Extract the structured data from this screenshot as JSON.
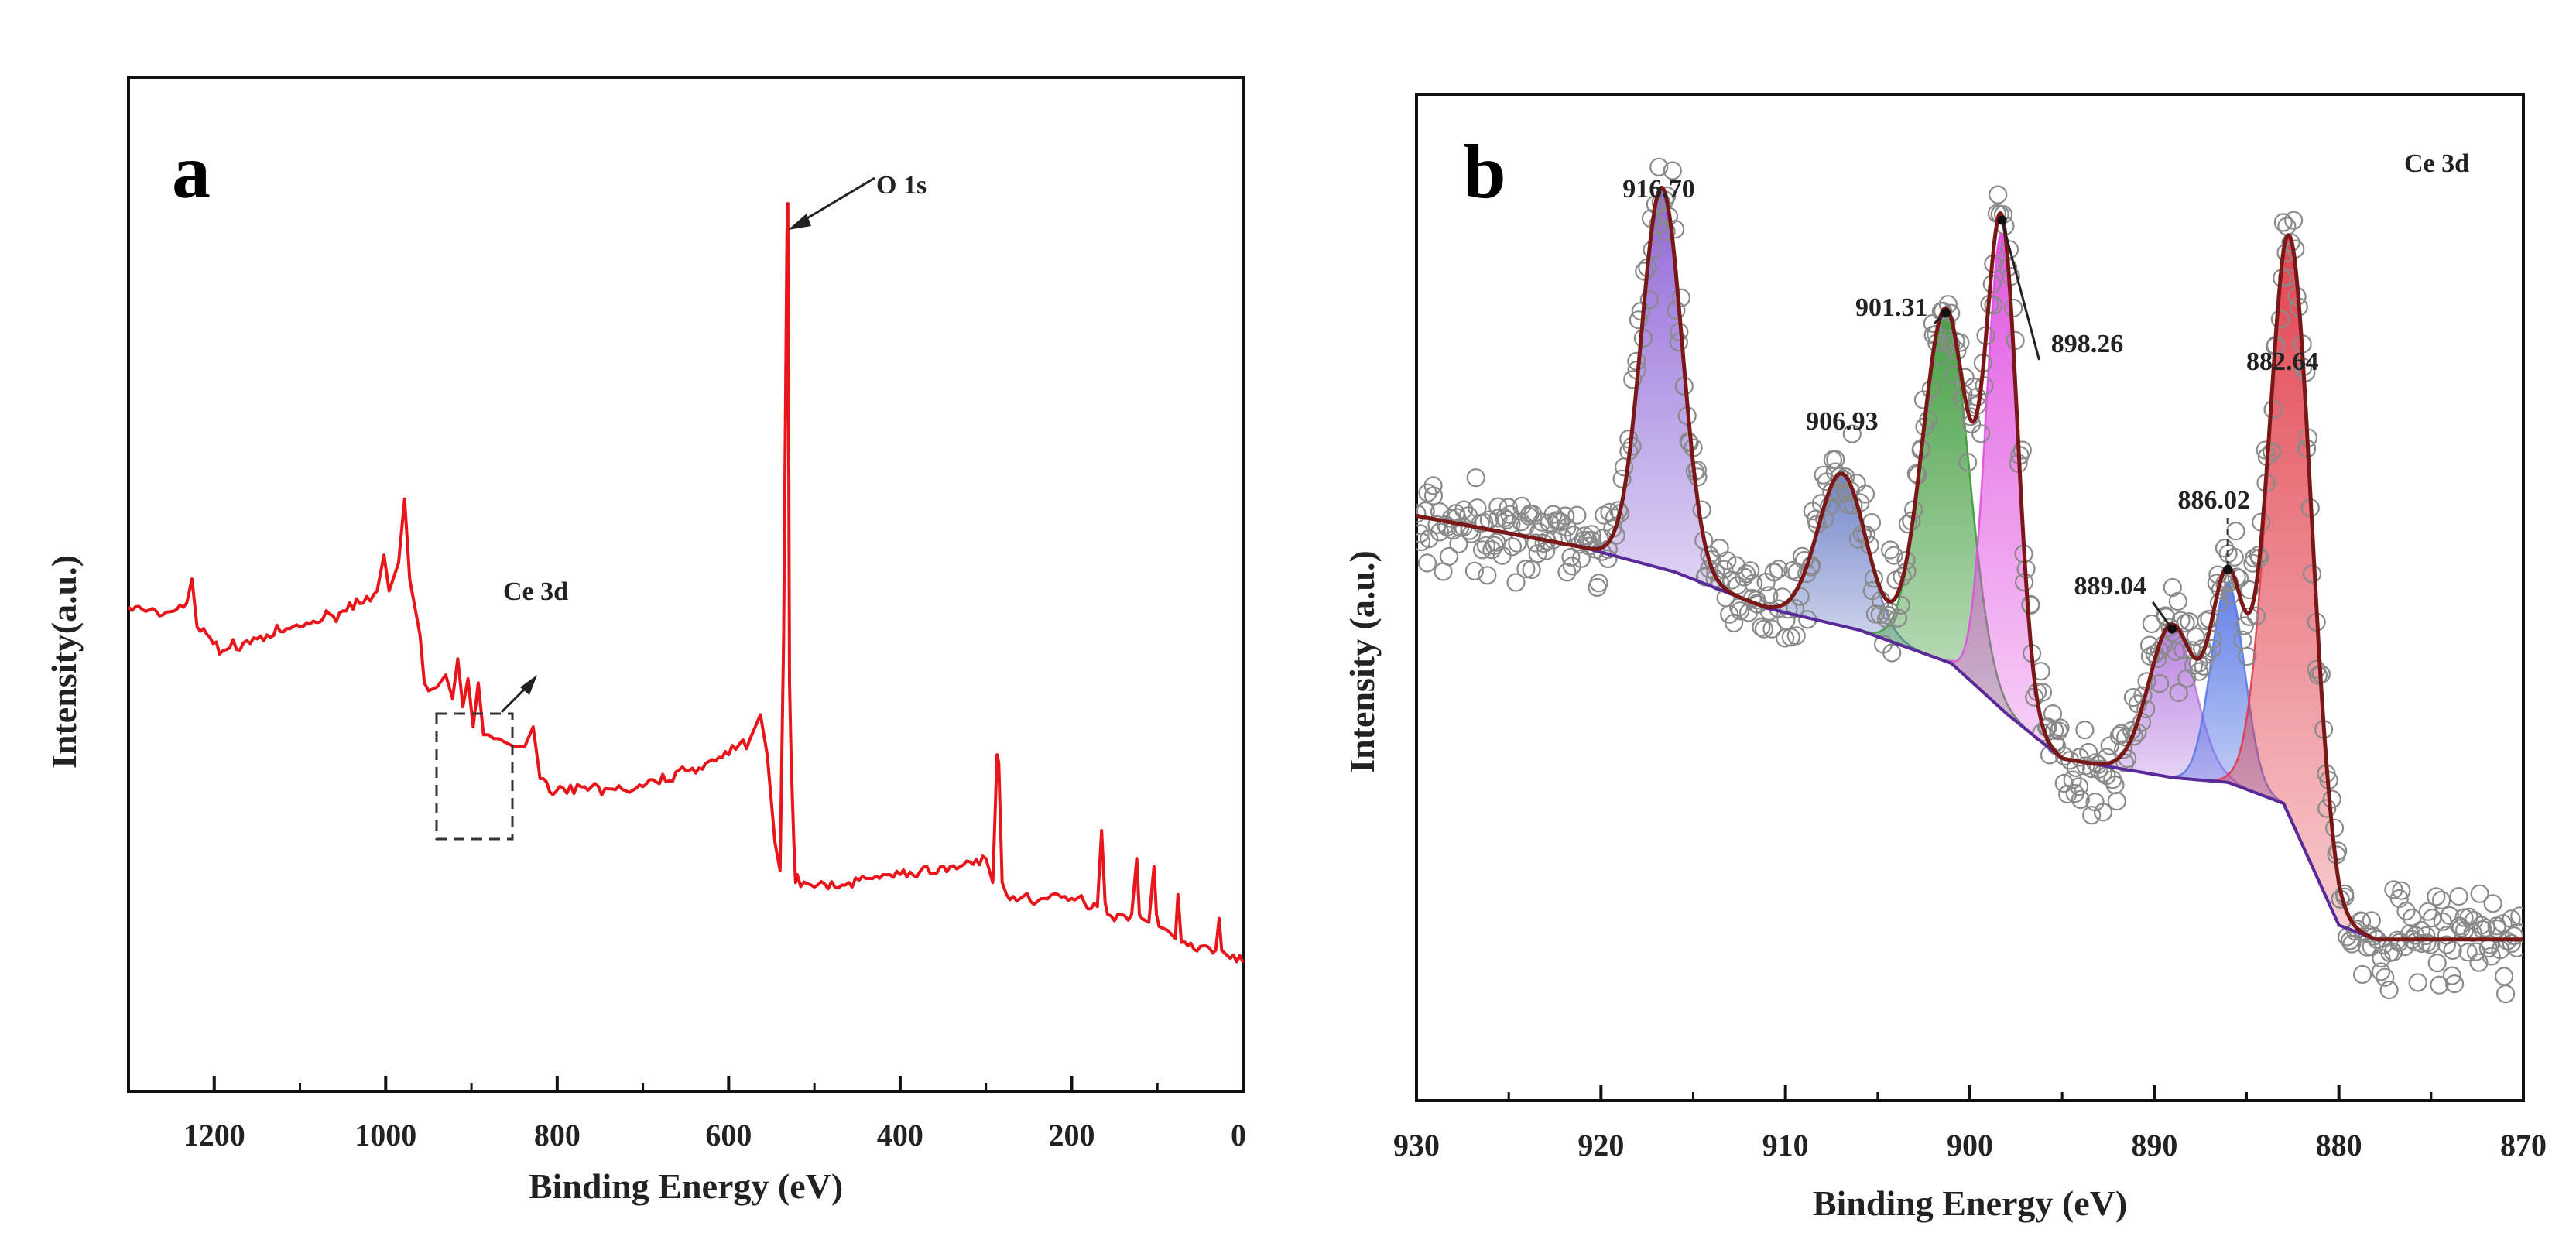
{
  "chart_data": [
    {
      "type": "line",
      "panel_label": "a",
      "xlabel": "Binding Energy (eV)",
      "ylabel": "Intensity(a.u.)",
      "xlim": [
        1300,
        0
      ],
      "x_ticks": [
        1200,
        1000,
        800,
        600,
        400,
        200,
        0
      ],
      "y_ticks_shown": false,
      "grid": false,
      "series": [
        {
          "color": "#e8161b",
          "x": [
            1300,
            1260,
            1232,
            1226,
            1220,
            1190,
            1150,
            1100,
            1050,
            1010,
            1002,
            996,
            985,
            978,
            972,
            960,
            955,
            950,
            940,
            930,
            922,
            916,
            910,
            904,
            898,
            892,
            886,
            880,
            874,
            868,
            860,
            850,
            838,
            828,
            820,
            805,
            760,
            720,
            700,
            650,
            600,
            575,
            563,
            555,
            546,
            540,
            536,
            532,
            531,
            529,
            527,
            524,
            522,
            520,
            516,
            460,
            400,
            330,
            300,
            292,
            287,
            285,
            281,
            276,
            260,
            200,
            170,
            165,
            161,
            158,
            130,
            124,
            121,
            118,
            110,
            104,
            101,
            98,
            88,
            79,
            76,
            72,
            50,
            32,
            28,
            25,
            15,
            0
          ],
          "y": [
            49.5,
            48.5,
            50.0,
            53.0,
            47.0,
            44.0,
            45.5,
            47.0,
            49.0,
            51.5,
            56.0,
            51.5,
            55.0,
            63.0,
            53.0,
            46.0,
            40.0,
            39.0,
            39.5,
            41.0,
            38.0,
            43.0,
            37.0,
            40.5,
            34.5,
            40.0,
            33.5,
            33.5,
            33.0,
            33.0,
            32.5,
            32.0,
            32.0,
            34.5,
            28.0,
            26.0,
            27.0,
            26.5,
            27.0,
            29.0,
            31.0,
            33.0,
            36.0,
            31.0,
            20.0,
            16.5,
            45.0,
            96.0,
            100.0,
            40.0,
            30.0,
            20.0,
            15.0,
            16.0,
            14.5,
            15.0,
            16.0,
            17.0,
            18.0,
            15.0,
            31.0,
            30.0,
            15.0,
            13.5,
            13.0,
            13.0,
            12.0,
            21.5,
            12.5,
            11.0,
            11.0,
            18.0,
            11.0,
            10.5,
            10.0,
            17.0,
            11.0,
            9.5,
            9.0,
            8.0,
            13.5,
            7.5,
            7.0,
            6.5,
            10.5,
            6.5,
            5.5,
            5.0
          ]
        }
      ],
      "annotations": [
        {
          "text": "O 1s"
        },
        {
          "text": "Ce 3d"
        }
      ]
    },
    {
      "type": "line",
      "panel_label": "b",
      "title": "Ce 3d",
      "xlabel": "Binding Energy (eV)",
      "ylabel": "Intensity (a.u.)",
      "xlim": [
        930,
        870
      ],
      "x_ticks": [
        930,
        920,
        910,
        900,
        890,
        880,
        870
      ],
      "y_ticks_shown": false,
      "grid": false,
      "baseline": {
        "x": [
          930,
          921,
          916,
          911,
          906,
          901,
          898,
          895,
          892,
          889,
          886,
          883,
          880,
          878,
          870
        ],
        "y": [
          48.5,
          45.2,
          42.6,
          38.8,
          36.5,
          33.0,
          27.7,
          23.0,
          22.0,
          21.0,
          20.5,
          18.3,
          5.5,
          4.0,
          4.0
        ]
      },
      "peaks": [
        {
          "label": "916.70",
          "center": 916.7,
          "height": 40.0,
          "sigma": 1.1,
          "color": "#8a5fd6"
        },
        {
          "label": "906.93",
          "center": 906.93,
          "height": 16.0,
          "sigma": 1.3,
          "color": "#6a7ec6"
        },
        {
          "label": "901.31",
          "center": 901.31,
          "height": 37.0,
          "sigma": 1.25,
          "color": "#3d9b3a"
        },
        {
          "label": "898.26",
          "center": 898.26,
          "height": 50.0,
          "sigma": 0.85,
          "color": "#e04fe0"
        },
        {
          "label": "889.04",
          "center": 889.04,
          "height": 16.0,
          "sigma": 1.25,
          "color": "#b57be0"
        },
        {
          "label": "886.02",
          "center": 886.02,
          "height": 21.0,
          "sigma": 0.9,
          "color": "#5b7ae6"
        },
        {
          "label": "882.64",
          "center": 882.64,
          "height": 61.0,
          "sigma": 1.15,
          "color": "#e03a48"
        }
      ],
      "envelope_color": "#7a1818",
      "raw_data_style": "open grey circles"
    }
  ]
}
